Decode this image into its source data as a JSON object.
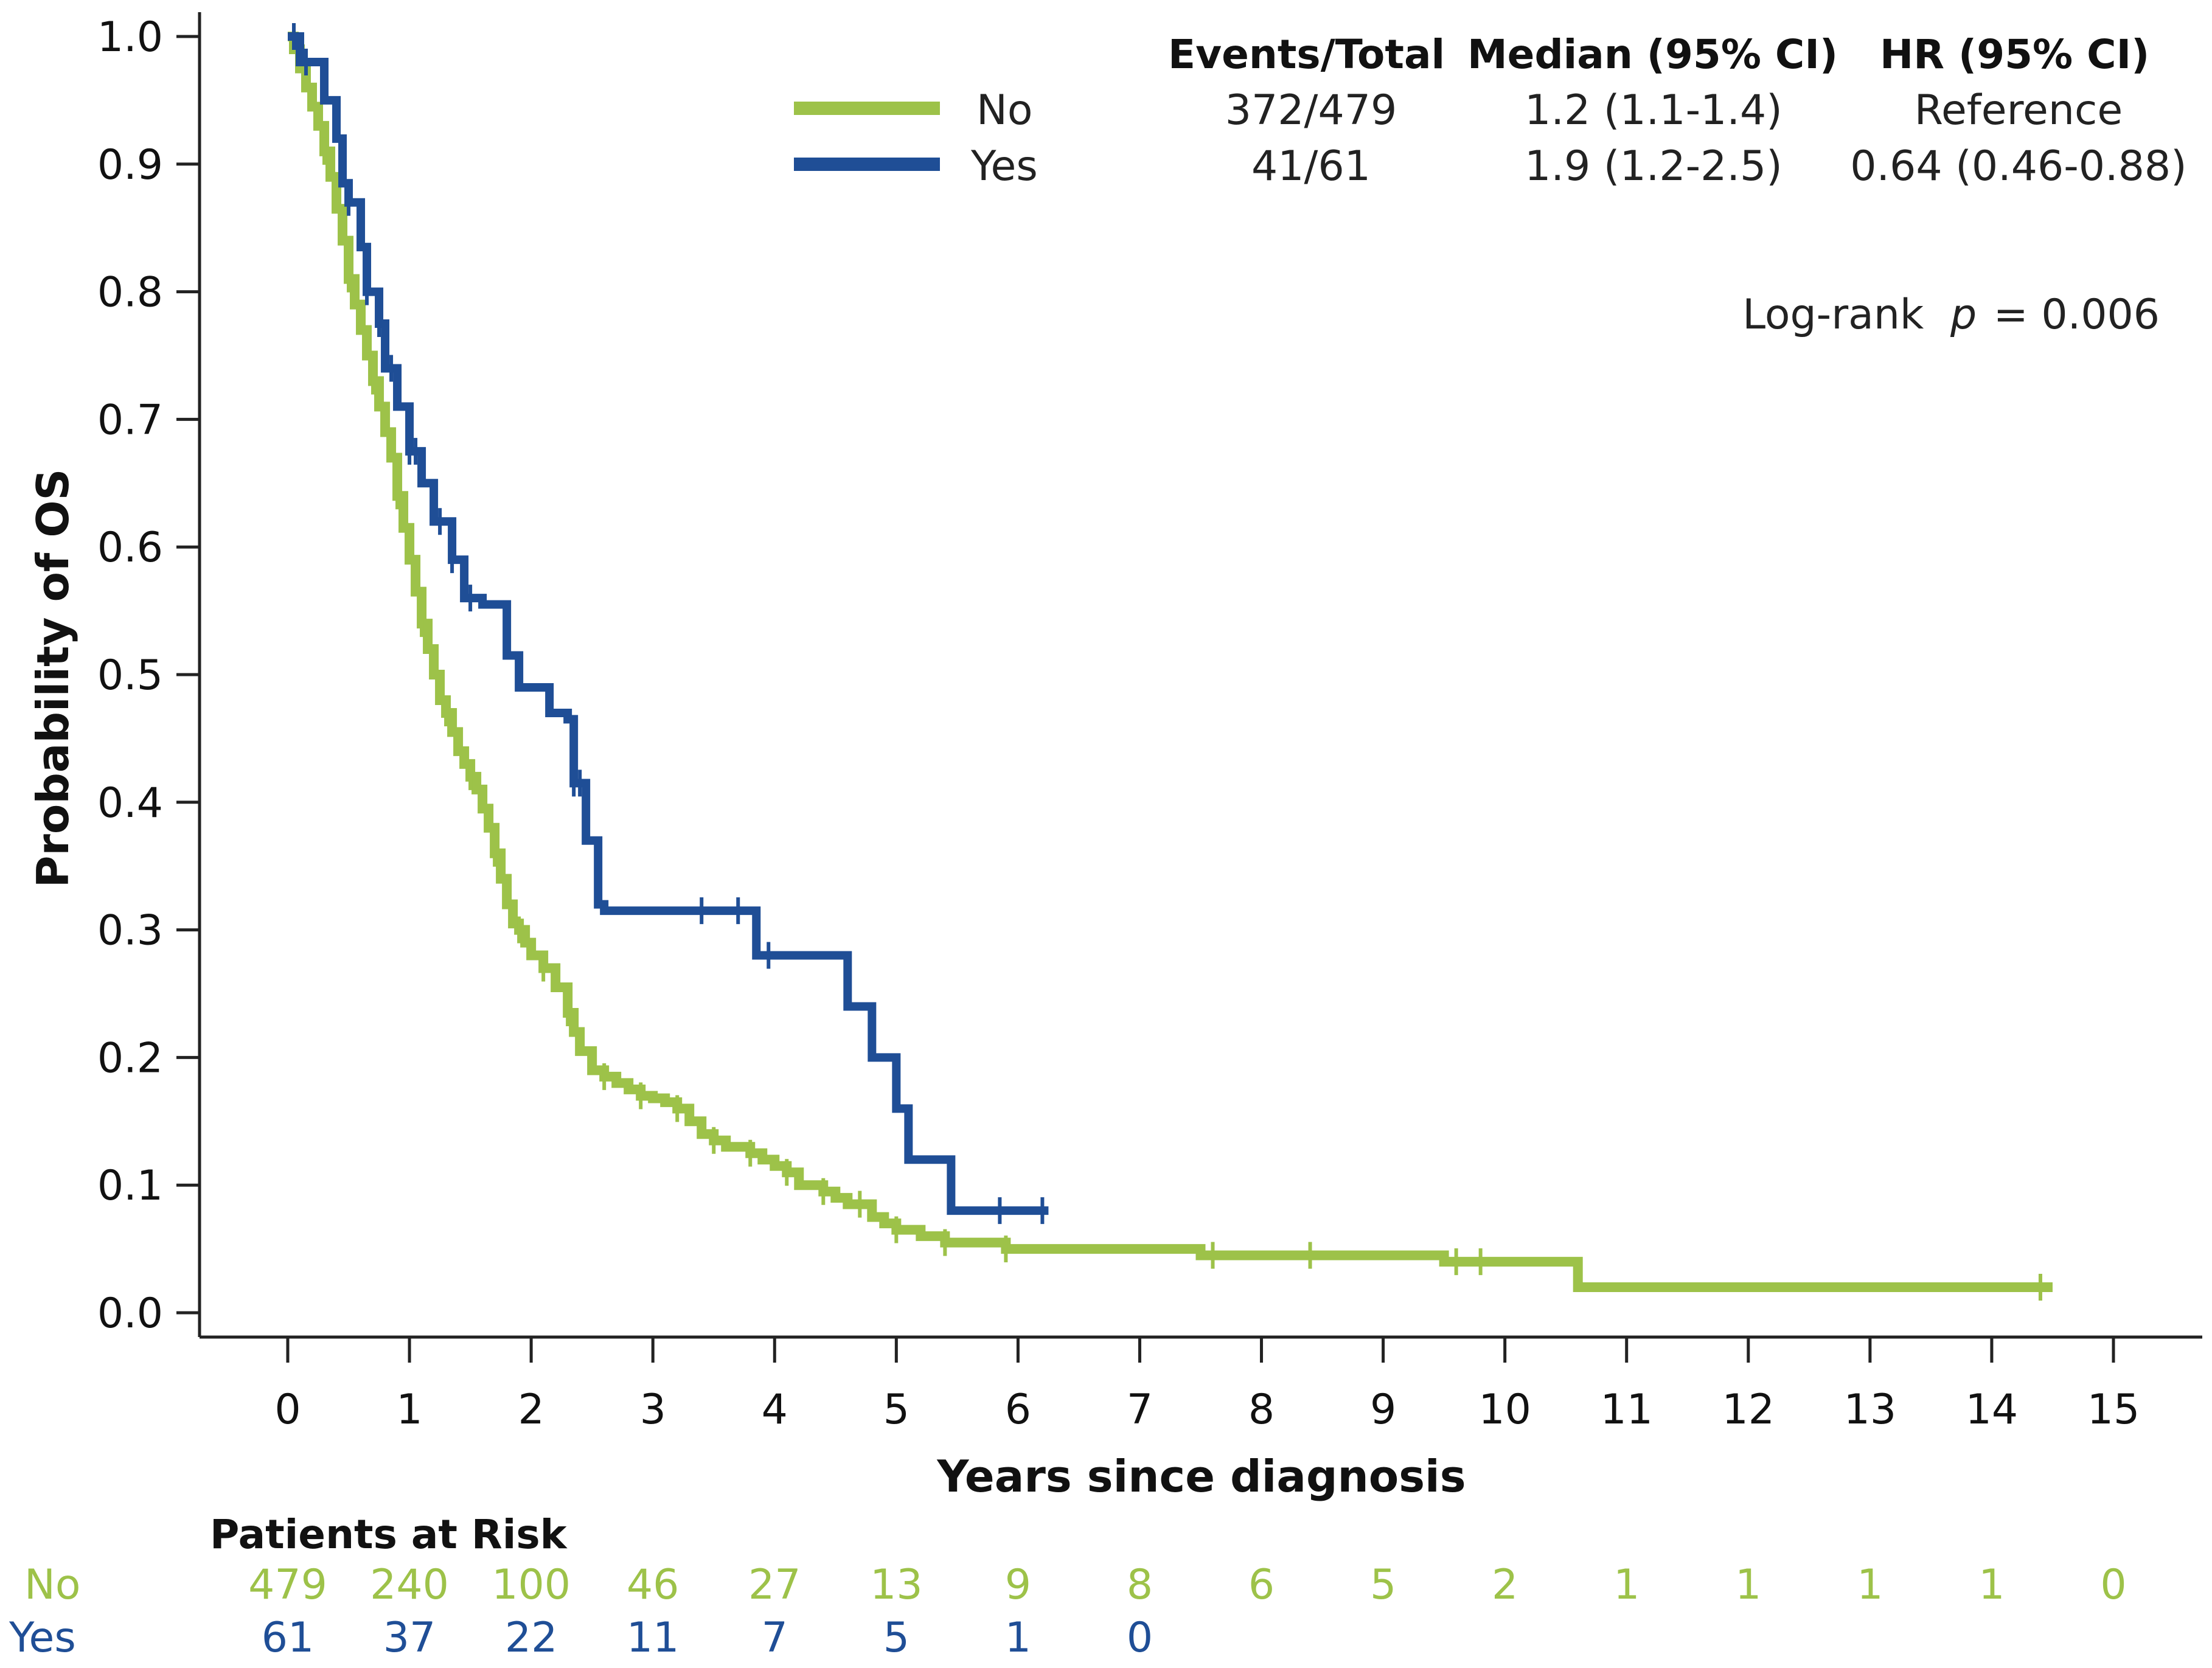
{
  "chart_data": {
    "type": "line",
    "title": "",
    "xlabel": "Years since diagnosis",
    "ylabel": "Probability of OS",
    "xlim": [
      0,
      15
    ],
    "ylim": [
      0,
      1
    ],
    "x_ticks": [
      "0",
      "1",
      "2",
      "3",
      "4",
      "5",
      "6",
      "7",
      "8",
      "9",
      "10",
      "11",
      "12",
      "13",
      "14",
      "15"
    ],
    "y_ticks": [
      "0.0",
      "0.1",
      "0.2",
      "0.3",
      "0.4",
      "0.5",
      "0.6",
      "0.7",
      "0.8",
      "0.9",
      "1.0"
    ],
    "grid": false,
    "legend_position": "top",
    "legend_header": {
      "events": "Events/Total",
      "median": "Median (95% CI)",
      "hr": "HR (95% CI)"
    },
    "series": [
      {
        "name": "No",
        "color": "#9dc249",
        "events_total": "372/479",
        "median_ci": "1.2 (1.1-1.4)",
        "hr_ci": "Reference",
        "steps": [
          [
            0,
            1.0
          ],
          [
            0.05,
            0.99
          ],
          [
            0.1,
            0.975
          ],
          [
            0.15,
            0.96
          ],
          [
            0.2,
            0.945
          ],
          [
            0.25,
            0.93
          ],
          [
            0.3,
            0.91
          ],
          [
            0.35,
            0.89
          ],
          [
            0.4,
            0.865
          ],
          [
            0.45,
            0.84
          ],
          [
            0.5,
            0.81
          ],
          [
            0.55,
            0.79
          ],
          [
            0.6,
            0.77
          ],
          [
            0.65,
            0.75
          ],
          [
            0.7,
            0.73
          ],
          [
            0.75,
            0.71
          ],
          [
            0.8,
            0.69
          ],
          [
            0.85,
            0.67
          ],
          [
            0.9,
            0.64
          ],
          [
            0.95,
            0.615
          ],
          [
            1.0,
            0.59
          ],
          [
            1.05,
            0.565
          ],
          [
            1.1,
            0.54
          ],
          [
            1.15,
            0.52
          ],
          [
            1.2,
            0.5
          ],
          [
            1.25,
            0.48
          ],
          [
            1.3,
            0.47
          ],
          [
            1.35,
            0.455
          ],
          [
            1.4,
            0.44
          ],
          [
            1.45,
            0.43
          ],
          [
            1.5,
            0.42
          ],
          [
            1.55,
            0.41
          ],
          [
            1.6,
            0.395
          ],
          [
            1.65,
            0.38
          ],
          [
            1.7,
            0.36
          ],
          [
            1.75,
            0.34
          ],
          [
            1.8,
            0.32
          ],
          [
            1.85,
            0.305
          ],
          [
            1.9,
            0.3
          ],
          [
            1.95,
            0.29
          ],
          [
            2.0,
            0.28
          ],
          [
            2.1,
            0.27
          ],
          [
            2.2,
            0.255
          ],
          [
            2.3,
            0.235
          ],
          [
            2.35,
            0.22
          ],
          [
            2.4,
            0.205
          ],
          [
            2.5,
            0.19
          ],
          [
            2.6,
            0.185
          ],
          [
            2.7,
            0.18
          ],
          [
            2.8,
            0.175
          ],
          [
            2.9,
            0.17
          ],
          [
            3.0,
            0.168
          ],
          [
            3.1,
            0.165
          ],
          [
            3.2,
            0.16
          ],
          [
            3.3,
            0.15
          ],
          [
            3.4,
            0.14
          ],
          [
            3.5,
            0.135
          ],
          [
            3.6,
            0.13
          ],
          [
            3.8,
            0.125
          ],
          [
            3.9,
            0.12
          ],
          [
            4.0,
            0.115
          ],
          [
            4.1,
            0.11
          ],
          [
            4.2,
            0.1
          ],
          [
            4.4,
            0.095
          ],
          [
            4.5,
            0.09
          ],
          [
            4.6,
            0.085
          ],
          [
            4.8,
            0.075
          ],
          [
            4.9,
            0.07
          ],
          [
            5.0,
            0.065
          ],
          [
            5.2,
            0.06
          ],
          [
            5.4,
            0.055
          ],
          [
            5.9,
            0.05
          ],
          [
            7.5,
            0.045
          ],
          [
            9.5,
            0.04
          ],
          [
            10.6,
            0.02
          ],
          [
            14.5,
            0.02
          ]
        ],
        "censor_times": [
          0.3,
          0.5,
          0.7,
          0.9,
          1.1,
          1.3,
          1.5,
          1.7,
          1.9,
          2.1,
          2.3,
          2.6,
          2.9,
          3.2,
          3.5,
          3.8,
          4.1,
          4.4,
          4.7,
          5.0,
          5.4,
          5.9,
          7.6,
          8.4,
          9.6,
          9.8,
          14.4
        ]
      },
      {
        "name": "Yes",
        "color": "#1f4e96",
        "events_total": "41/61",
        "median_ci": "1.9 (1.2-2.5)",
        "hr_ci": "0.64 (0.46-0.88)",
        "steps": [
          [
            0,
            1.0
          ],
          [
            0.1,
            0.98
          ],
          [
            0.3,
            0.95
          ],
          [
            0.4,
            0.92
          ],
          [
            0.45,
            0.885
          ],
          [
            0.5,
            0.87
          ],
          [
            0.6,
            0.835
          ],
          [
            0.65,
            0.8
          ],
          [
            0.75,
            0.775
          ],
          [
            0.8,
            0.74
          ],
          [
            0.9,
            0.71
          ],
          [
            1.0,
            0.675
          ],
          [
            1.1,
            0.65
          ],
          [
            1.2,
            0.62
          ],
          [
            1.35,
            0.59
          ],
          [
            1.45,
            0.56
          ],
          [
            1.6,
            0.555
          ],
          [
            1.8,
            0.515
          ],
          [
            1.9,
            0.49
          ],
          [
            2.15,
            0.47
          ],
          [
            2.3,
            0.465
          ],
          [
            2.35,
            0.415
          ],
          [
            2.45,
            0.37
          ],
          [
            2.55,
            0.32
          ],
          [
            2.6,
            0.315
          ],
          [
            3.85,
            0.28
          ],
          [
            4.6,
            0.24
          ],
          [
            4.8,
            0.2
          ],
          [
            5.0,
            0.16
          ],
          [
            5.1,
            0.12
          ],
          [
            5.45,
            0.08
          ],
          [
            6.25,
            0.08
          ]
        ],
        "censor_times": [
          0.05,
          0.15,
          0.5,
          0.65,
          0.75,
          0.85,
          1.0,
          1.05,
          1.25,
          1.35,
          1.5,
          2.35,
          2.4,
          3.4,
          3.7,
          3.95,
          5.85,
          6.2
        ]
      }
    ],
    "log_rank_label": "Log-rank",
    "p_label": "p",
    "p_value": "= 0.006",
    "risk_table": {
      "title": "Patients at Risk",
      "rows": [
        {
          "name": "No",
          "counts": [
            "479",
            "240",
            "100",
            "46",
            "27",
            "13",
            "9",
            "8",
            "6",
            "5",
            "2",
            "1",
            "1",
            "1",
            "1",
            "0"
          ]
        },
        {
          "name": "Yes",
          "counts": [
            "61",
            "37",
            "22",
            "11",
            "7",
            "5",
            "1",
            "0"
          ]
        }
      ]
    }
  }
}
